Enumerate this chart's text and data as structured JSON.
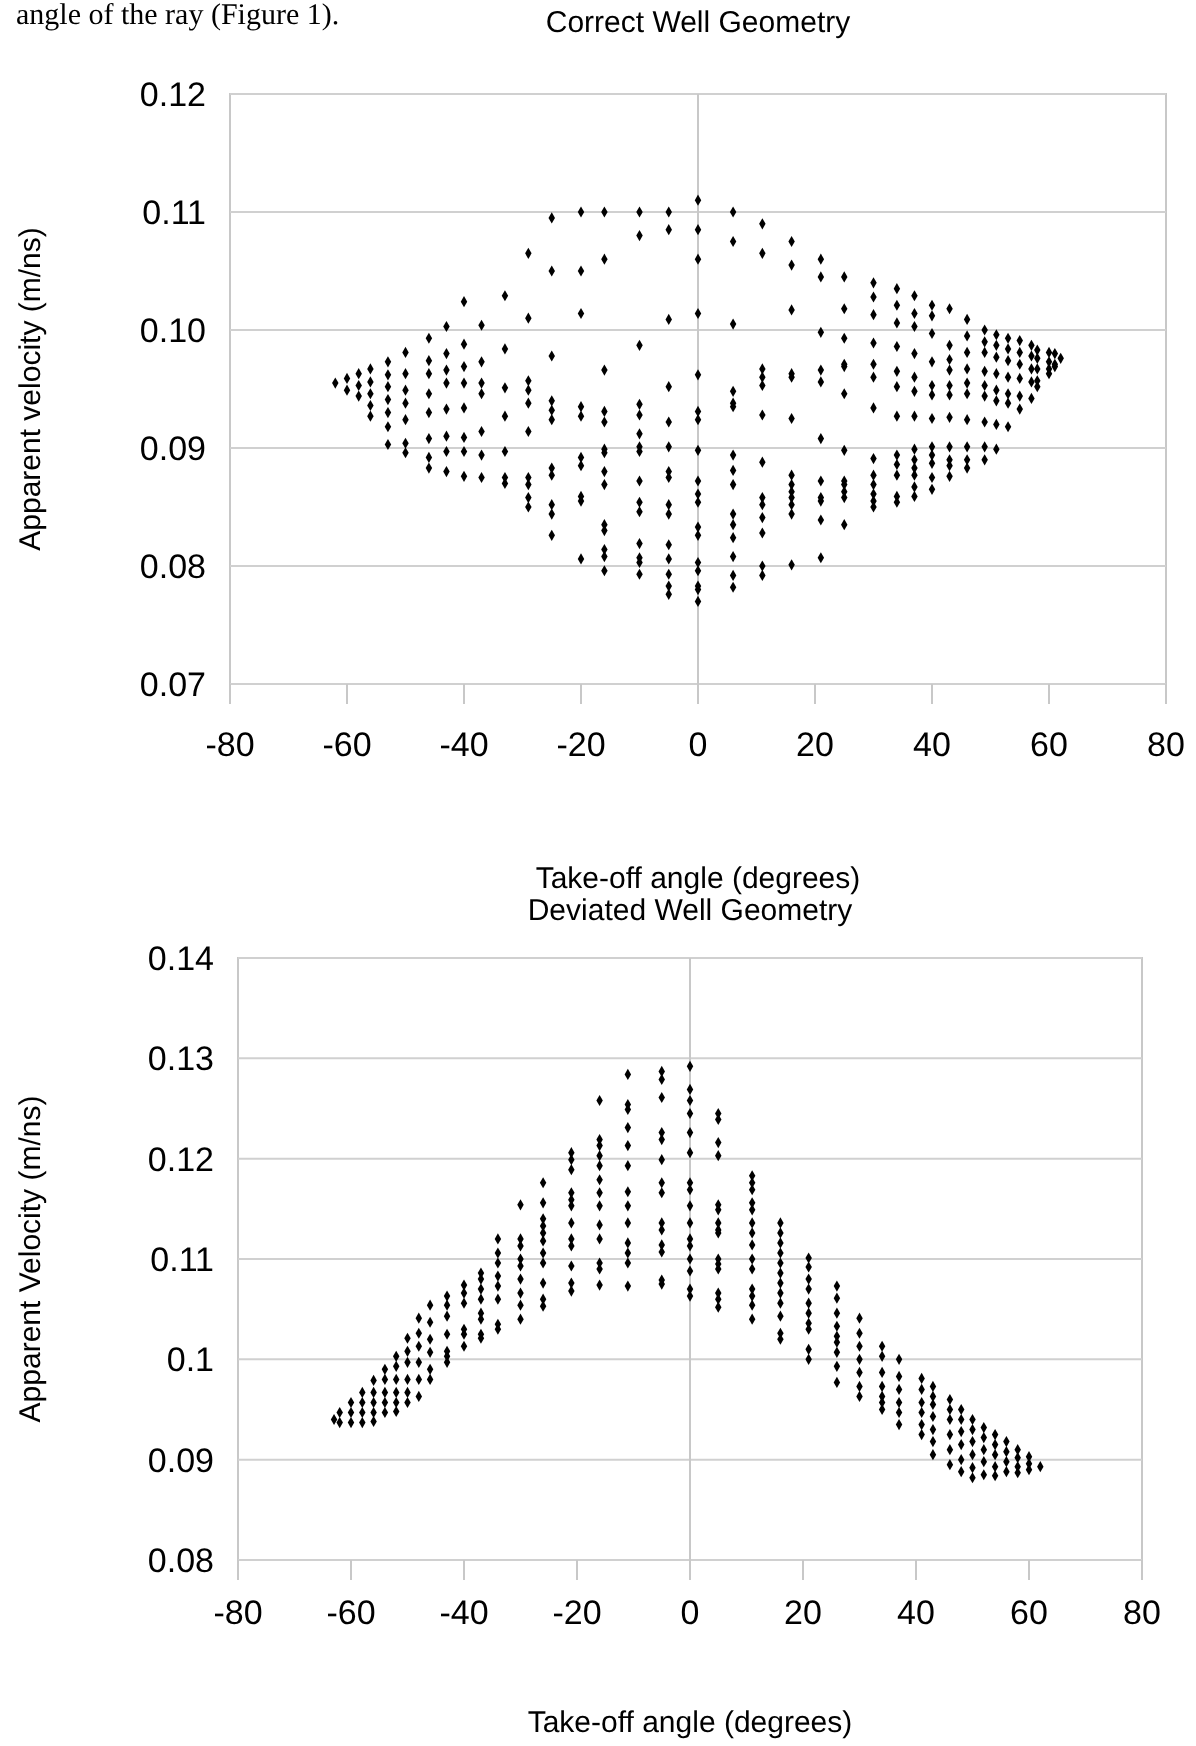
{
  "chart_data": [
    {
      "type": "scatter",
      "title": "Correct Well Geometry",
      "xlabel": "Take-off angle (degrees)",
      "ylabel": "Apparent velocity (m/ns)",
      "annotations": [
        "angle of the ray (Figure 1)."
      ],
      "xlim": [
        -80,
        80
      ],
      "xticks": [
        -80,
        -60,
        -40,
        -20,
        0,
        20,
        40,
        60,
        80
      ],
      "ylim": [
        0.07,
        0.12
      ],
      "yticks": [
        0.07,
        0.08,
        0.09,
        {
          "value": 0.1,
          "label": "0.10"
        },
        0.11,
        0.12
      ],
      "grid": "y",
      "marker": "diamond",
      "series": [
        {
          "color": "#000000",
          "x": [
            -62,
            -60,
            -60,
            -58,
            -58,
            -58,
            -56,
            -56,
            -56,
            -56,
            -56,
            -53,
            -53,
            -53,
            -53,
            -53,
            -53,
            -53,
            -50,
            -50,
            -50,
            -50,
            -50,
            -50,
            -50,
            -46,
            -46,
            -46,
            -46,
            -46,
            -46,
            -46,
            -46,
            -43,
            -43,
            -43,
            -43,
            -43,
            -43,
            -43,
            -43,
            -40,
            -40,
            -40,
            -40,
            -40,
            -40,
            -40,
            -40,
            -37,
            -37,
            -37,
            -37,
            -37,
            -37,
            -37,
            -33,
            -33,
            -33,
            -33,
            -33,
            -33,
            -33,
            -29,
            -29,
            -29,
            -29,
            -29,
            -29,
            -29,
            -29,
            -29,
            -29,
            -25,
            -25,
            -25,
            -25,
            -25,
            -25,
            -25,
            -25,
            -25,
            -25,
            -25,
            -20,
            -20,
            -20,
            -20,
            -20,
            -20,
            -20,
            -20,
            -20,
            -20,
            -16,
            -16,
            -16,
            -16,
            -16,
            -16,
            -16,
            -16,
            -16,
            -16,
            -16,
            -16,
            -16,
            -16,
            -10,
            -10,
            -10,
            -10,
            -10,
            -10,
            -10,
            -10,
            -10,
            -10,
            -10,
            -10,
            -10,
            -10,
            -10,
            -5,
            -5,
            -5,
            -5,
            -5,
            -5,
            -5,
            -5,
            -5,
            -5,
            -5,
            -5,
            -5,
            -5,
            -5,
            0,
            0,
            0,
            0,
            0,
            0,
            0,
            0,
            0,
            0,
            0,
            0,
            0,
            0,
            0,
            0,
            0,
            0,
            6,
            6,
            6,
            6,
            6,
            6,
            6,
            6,
            6,
            6,
            6,
            6,
            6,
            6,
            6,
            11,
            11,
            11,
            11,
            11,
            11,
            11,
            11,
            11,
            11,
            11,
            11,
            11,
            16,
            16,
            16,
            16,
            16,
            16,
            16,
            16,
            16,
            16,
            16,
            16,
            16,
            21,
            21,
            21,
            21,
            21,
            21,
            21,
            21,
            21,
            21,
            21,
            25,
            25,
            25,
            25,
            25,
            25,
            25,
            25,
            25,
            25,
            25,
            25,
            30,
            30,
            30,
            30,
            30,
            30,
            30,
            30,
            30,
            30,
            30,
            30,
            30,
            34,
            34,
            34,
            34,
            34,
            34,
            34,
            34,
            34,
            34,
            34,
            34,
            37,
            37,
            37,
            37,
            37,
            37,
            37,
            37,
            37,
            37,
            37,
            37,
            37,
            40,
            40,
            40,
            40,
            40,
            40,
            40,
            40,
            40,
            40,
            40,
            40,
            43,
            43,
            43,
            43,
            43,
            43,
            43,
            43,
            43,
            43,
            43,
            46,
            46,
            46,
            46,
            46,
            46,
            46,
            46,
            46,
            46,
            49,
            49,
            49,
            49,
            49,
            49,
            49,
            49,
            49,
            51,
            51,
            51,
            51,
            51,
            51,
            51,
            51,
            53,
            53,
            53,
            53,
            53,
            53,
            53,
            55,
            55,
            55,
            55,
            55,
            55,
            57,
            57,
            57,
            57,
            57,
            58,
            58,
            58,
            58,
            58,
            60,
            60,
            60,
            60,
            61,
            61,
            61,
            62
          ],
          "values": [
            0.0955,
            0.0959,
            0.0949,
            0.0963,
            0.0953,
            0.0944,
            0.0967,
            0.0956,
            0.0946,
            0.0936,
            0.0927,
            0.0973,
            0.0962,
            0.0952,
            0.0941,
            0.093,
            0.0918,
            0.0903,
            0.0981,
            0.0963,
            0.0949,
            0.0938,
            0.0924,
            0.0904,
            0.0896,
            0.0993,
            0.0974,
            0.0963,
            0.0946,
            0.093,
            0.0908,
            0.0892,
            0.0883,
            0.1003,
            0.098,
            0.0966,
            0.0955,
            0.0933,
            0.091,
            0.0897,
            0.088,
            0.1024,
            0.0988,
            0.0969,
            0.0955,
            0.0934,
            0.0909,
            0.0897,
            0.0876,
            0.1004,
            0.0973,
            0.0955,
            0.0946,
            0.0914,
            0.0894,
            0.0875,
            0.1029,
            0.0984,
            0.0951,
            0.0927,
            0.0897,
            0.0875,
            0.087,
            0.1065,
            0.101,
            0.0957,
            0.0949,
            0.0938,
            0.0914,
            0.0875,
            0.0869,
            0.0858,
            0.085,
            0.1095,
            0.105,
            0.0978,
            0.094,
            0.0932,
            0.0924,
            0.0883,
            0.0877,
            0.0852,
            0.0844,
            0.0826,
            0.11,
            0.105,
            0.1014,
            0.0935,
            0.0927,
            0.0892,
            0.0885,
            0.0859,
            0.0855,
            0.0806,
            0.11,
            0.106,
            0.0966,
            0.0931,
            0.0922,
            0.0899,
            0.0896,
            0.088,
            0.0869,
            0.0835,
            0.083,
            0.0814,
            0.0808,
            0.0796,
            0.11,
            0.108,
            0.0987,
            0.0937,
            0.0928,
            0.0912,
            0.0901,
            0.0897,
            0.0872,
            0.0854,
            0.0846,
            0.0819,
            0.0807,
            0.0803,
            0.0793,
            0.11,
            0.1085,
            0.1009,
            0.0952,
            0.0922,
            0.0901,
            0.088,
            0.0875,
            0.0852,
            0.0844,
            0.0818,
            0.0806,
            0.0793,
            0.0783,
            0.0776,
            0.111,
            0.1085,
            0.106,
            0.1014,
            0.0962,
            0.0931,
            0.0924,
            0.0898,
            0.0872,
            0.0861,
            0.0854,
            0.0833,
            0.0826,
            0.0803,
            0.0796,
            0.0783,
            0.078,
            0.077,
            0.11,
            0.1075,
            0.1005,
            0.0948,
            0.0938,
            0.0935,
            0.0894,
            0.0881,
            0.0869,
            0.0844,
            0.0835,
            0.0824,
            0.0808,
            0.0792,
            0.0782,
            0.109,
            0.1065,
            0.0967,
            0.096,
            0.0953,
            0.0928,
            0.0888,
            0.0858,
            0.0852,
            0.0841,
            0.0828,
            0.08,
            0.0792,
            0.1075,
            0.1055,
            0.1017,
            0.0963,
            0.096,
            0.0925,
            0.0877,
            0.0869,
            0.0863,
            0.0858,
            0.0852,
            0.0844,
            0.0801,
            0.106,
            0.1045,
            0.0998,
            0.0966,
            0.0956,
            0.0908,
            0.0872,
            0.0858,
            0.0855,
            0.0839,
            0.0807,
            0.1045,
            0.1018,
            0.0993,
            0.0971,
            0.0969,
            0.0946,
            0.0898,
            0.0872,
            0.0869,
            0.0863,
            0.0858,
            0.0835,
            0.104,
            0.1028,
            0.1013,
            0.0989,
            0.0971,
            0.096,
            0.0934,
            0.0891,
            0.0877,
            0.0869,
            0.0861,
            0.0855,
            0.085,
            0.1035,
            0.1021,
            0.1006,
            0.0986,
            0.0965,
            0.0952,
            0.0927,
            0.0894,
            0.0886,
            0.0877,
            0.0859,
            0.0854,
            0.1029,
            0.1014,
            0.1003,
            0.098,
            0.096,
            0.0948,
            0.0927,
            0.0899,
            0.089,
            0.0883,
            0.0877,
            0.0867,
            0.0859,
            0.1021,
            0.1012,
            0.0997,
            0.0973,
            0.0953,
            0.0945,
            0.0925,
            0.0901,
            0.0894,
            0.0887,
            0.0875,
            0.0865,
            0.1018,
            0.0987,
            0.0975,
            0.0966,
            0.0953,
            0.0945,
            0.0926,
            0.0901,
            0.089,
            0.0885,
            0.0876,
            0.1009,
            0.0995,
            0.0981,
            0.0967,
            0.0955,
            0.0946,
            0.0924,
            0.0901,
            0.089,
            0.0883,
            0.1,
            0.099,
            0.0981,
            0.0965,
            0.0953,
            0.0944,
            0.0922,
            0.0901,
            0.089,
            0.0996,
            0.0987,
            0.0977,
            0.0963,
            0.0949,
            0.094,
            0.092,
            0.0899,
            0.0993,
            0.0984,
            0.0974,
            0.096,
            0.0946,
            0.0938,
            0.0918,
            0.0991,
            0.0981,
            0.0971,
            0.0959,
            0.0944,
            0.0933,
            0.0987,
            0.0978,
            0.0967,
            0.0956,
            0.0942,
            0.0983,
            0.0976,
            0.0967,
            0.0957,
            0.0952,
            0.0981,
            0.0973,
            0.0967,
            0.0963,
            0.098,
            0.0971,
            0.0969,
            0.0976
          ]
        }
      ]
    },
    {
      "type": "scatter",
      "title": "Deviated Well Geometry",
      "xlabel": "Take-off angle (degrees)",
      "ylabel": "Apparent Velocity (m/ns)",
      "xlim": [
        -80,
        80
      ],
      "xticks": [
        -80,
        -60,
        -40,
        -20,
        0,
        20,
        40,
        60,
        80
      ],
      "ylim": [
        0.08,
        0.14
      ],
      "yticks": [
        0.08,
        0.09,
        0.1,
        0.11,
        0.12,
        0.13,
        0.14
      ],
      "grid": "y",
      "marker": "diamond",
      "series": [
        {
          "color": "#000000",
          "x": [
            -63,
            -62,
            -62,
            -60,
            -60,
            -60,
            -58,
            -58,
            -58,
            -58,
            -56,
            -56,
            -56,
            -56,
            -56,
            -54,
            -54,
            -54,
            -54,
            -54,
            -52,
            -52,
            -52,
            -52,
            -52,
            -52,
            -50,
            -50,
            -50,
            -50,
            -50,
            -50,
            -48,
            -48,
            -48,
            -48,
            -48,
            -48,
            -46,
            -46,
            -46,
            -46,
            -46,
            -46,
            -43,
            -43,
            -43,
            -43,
            -43,
            -43,
            -43,
            -40,
            -40,
            -40,
            -40,
            -40,
            -40,
            -37,
            -37,
            -37,
            -37,
            -37,
            -37,
            -37,
            -37,
            -34,
            -34,
            -34,
            -34,
            -34,
            -34,
            -34,
            -34,
            -30,
            -30,
            -30,
            -30,
            -30,
            -30,
            -30,
            -30,
            -30,
            -26,
            -26,
            -26,
            -26,
            -26,
            -26,
            -26,
            -26,
            -26,
            -26,
            -26,
            -21,
            -21,
            -21,
            -21,
            -21,
            -21,
            -21,
            -21,
            -21,
            -21,
            -21,
            -21,
            -16,
            -16,
            -16,
            -16,
            -16,
            -16,
            -16,
            -16,
            -16,
            -16,
            -16,
            -16,
            -16,
            -11,
            -11,
            -11,
            -11,
            -11,
            -11,
            -11,
            -11,
            -11,
            -11,
            -11,
            -11,
            -11,
            -5,
            -5,
            -5,
            -5,
            -5,
            -5,
            -5,
            -5,
            -5,
            -5,
            -5,
            -5,
            -5,
            -5,
            0,
            0,
            0,
            0,
            0,
            0,
            0,
            0,
            0,
            0,
            0,
            0,
            0,
            0,
            0,
            0,
            5,
            5,
            5,
            5,
            5,
            5,
            5,
            5,
            5,
            5,
            5,
            5,
            5,
            5,
            5,
            11,
            11,
            11,
            11,
            11,
            11,
            11,
            11,
            11,
            11,
            11,
            11,
            11,
            11,
            16,
            16,
            16,
            16,
            16,
            16,
            16,
            16,
            16,
            16,
            16,
            16,
            21,
            21,
            21,
            21,
            21,
            21,
            21,
            21,
            21,
            21,
            26,
            26,
            26,
            26,
            26,
            26,
            26,
            26,
            26,
            30,
            30,
            30,
            30,
            30,
            30,
            30,
            34,
            34,
            34,
            34,
            34,
            34,
            34,
            37,
            37,
            37,
            37,
            37,
            37,
            41,
            41,
            41,
            41,
            41,
            41,
            43,
            43,
            43,
            43,
            43,
            43,
            43,
            46,
            46,
            46,
            46,
            46,
            46,
            48,
            48,
            48,
            48,
            48,
            48,
            50,
            50,
            50,
            50,
            50,
            50,
            52,
            52,
            52,
            52,
            52,
            54,
            54,
            54,
            54,
            54,
            56,
            56,
            56,
            56,
            58,
            58,
            58,
            58,
            60,
            60,
            60,
            62
          ],
          "values": [
            0.094,
            0.0947,
            0.0937,
            0.0957,
            0.0947,
            0.0937,
            0.0967,
            0.0957,
            0.0947,
            0.0937,
            0.0979,
            0.0967,
            0.0957,
            0.0947,
            0.0938,
            0.099,
            0.098,
            0.0967,
            0.0957,
            0.0947,
            0.1003,
            0.0993,
            0.098,
            0.0967,
            0.0957,
            0.0948,
            0.1021,
            0.1008,
            0.0997,
            0.098,
            0.0967,
            0.0957,
            0.1041,
            0.1026,
            0.1013,
            0.0997,
            0.098,
            0.0963,
            0.1054,
            0.1037,
            0.102,
            0.1007,
            0.099,
            0.098,
            0.1063,
            0.1054,
            0.1043,
            0.1025,
            0.1008,
            0.1003,
            0.0997,
            0.1074,
            0.1066,
            0.1056,
            0.103,
            0.1025,
            0.1013,
            0.1086,
            0.108,
            0.107,
            0.106,
            0.1046,
            0.104,
            0.1025,
            0.1021,
            0.112,
            0.1106,
            0.1096,
            0.1083,
            0.1073,
            0.106,
            0.1035,
            0.103,
            0.1154,
            0.112,
            0.1113,
            0.11,
            0.1093,
            0.108,
            0.1066,
            0.1054,
            0.104,
            0.1176,
            0.1156,
            0.114,
            0.1133,
            0.1126,
            0.1118,
            0.1106,
            0.1096,
            0.1076,
            0.106,
            0.1053,
            0.1206,
            0.1199,
            0.1189,
            0.1166,
            0.1159,
            0.1153,
            0.1136,
            0.112,
            0.1113,
            0.1093,
            0.1076,
            0.1068,
            0.1258,
            0.1219,
            0.1213,
            0.1203,
            0.1193,
            0.1179,
            0.1166,
            0.1153,
            0.1134,
            0.112,
            0.1096,
            0.109,
            0.1074,
            0.1284,
            0.1254,
            0.1249,
            0.1231,
            0.1213,
            0.1193,
            0.1167,
            0.1153,
            0.1136,
            0.1116,
            0.1106,
            0.1096,
            0.1073,
            0.1287,
            0.1279,
            0.1261,
            0.1226,
            0.1219,
            0.1199,
            0.1176,
            0.1166,
            0.1136,
            0.1129,
            0.1114,
            0.1107,
            0.1079,
            0.1075,
            0.1292,
            0.1269,
            0.1258,
            0.1245,
            0.1226,
            0.1206,
            0.1176,
            0.1169,
            0.1153,
            0.1136,
            0.112,
            0.1113,
            0.11,
            0.1088,
            0.107,
            0.1063,
            0.1245,
            0.1239,
            0.1216,
            0.1203,
            0.1154,
            0.1149,
            0.1136,
            0.1129,
            0.1126,
            0.11,
            0.1095,
            0.109,
            0.1066,
            0.106,
            0.1052,
            0.1183,
            0.1176,
            0.1169,
            0.1156,
            0.1149,
            0.1136,
            0.1126,
            0.1114,
            0.11,
            0.109,
            0.107,
            0.1063,
            0.1054,
            0.104,
            0.1136,
            0.1126,
            0.1116,
            0.1106,
            0.1096,
            0.1086,
            0.1076,
            0.1066,
            0.1056,
            0.1043,
            0.1026,
            0.102,
            0.1101,
            0.1092,
            0.108,
            0.107,
            0.1056,
            0.1046,
            0.1036,
            0.103,
            0.101,
            0.1,
            0.1073,
            0.1061,
            0.1046,
            0.1033,
            0.1023,
            0.1017,
            0.1007,
            0.0993,
            0.0977,
            0.1041,
            0.1026,
            0.1013,
            0.1,
            0.0987,
            0.0973,
            0.0963,
            0.1013,
            0.1003,
            0.0987,
            0.0973,
            0.0963,
            0.0957,
            0.095,
            0.1,
            0.0983,
            0.097,
            0.0957,
            0.0947,
            0.0935,
            0.0981,
            0.097,
            0.0957,
            0.0947,
            0.0935,
            0.0925,
            0.0973,
            0.0963,
            0.0955,
            0.0943,
            0.093,
            0.0918,
            0.0905,
            0.096,
            0.095,
            0.094,
            0.0925,
            0.091,
            0.0895,
            0.095,
            0.094,
            0.0928,
            0.0915,
            0.09,
            0.0888,
            0.094,
            0.093,
            0.0918,
            0.0905,
            0.0892,
            0.0882,
            0.0932,
            0.0922,
            0.091,
            0.0898,
            0.0885,
            0.0925,
            0.0915,
            0.0905,
            0.0893,
            0.0884,
            0.0918,
            0.0908,
            0.0898,
            0.0888,
            0.091,
            0.0902,
            0.0893,
            0.0887,
            0.0903,
            0.0896,
            0.089,
            0.0893
          ]
        }
      ]
    }
  ]
}
